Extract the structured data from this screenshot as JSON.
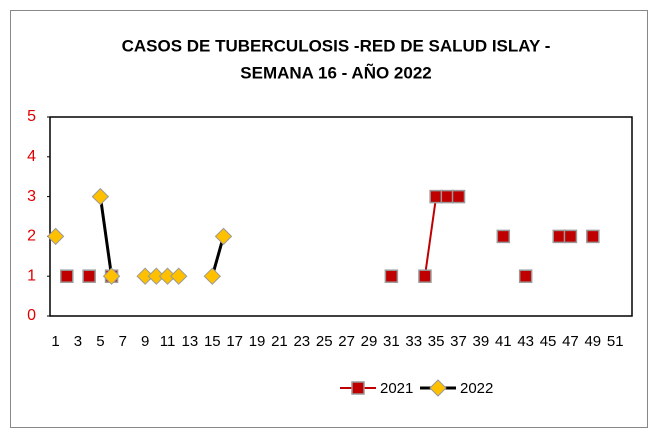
{
  "chart_data": {
    "type": "line",
    "title": [
      "CASOS DE TUBERCULOSIS -RED DE SALUD ISLAY -",
      "SEMANA 16 -  AÑO 2022"
    ],
    "categories": [
      1,
      null,
      3,
      null,
      5,
      null,
      7,
      null,
      9,
      null,
      11,
      null,
      13,
      null,
      15,
      null,
      17,
      null,
      19,
      null,
      21,
      null,
      23,
      null,
      25,
      null,
      27,
      null,
      29,
      null,
      31,
      null,
      33,
      null,
      35,
      null,
      37,
      null,
      39,
      null,
      41,
      null,
      43,
      null,
      45,
      null,
      47,
      null,
      49,
      null,
      51,
      null
    ],
    "series": [
      {
        "name": "2021",
        "color": "#c00000",
        "marker": "square",
        "marker_color": "#c00000",
        "values": [
          null,
          1,
          null,
          1,
          null,
          1,
          null,
          null,
          null,
          null,
          null,
          null,
          null,
          null,
          null,
          null,
          null,
          null,
          null,
          null,
          null,
          null,
          null,
          null,
          null,
          null,
          null,
          null,
          null,
          null,
          1,
          null,
          null,
          1,
          3,
          3,
          3,
          null,
          null,
          null,
          2,
          null,
          1,
          null,
          null,
          2,
          2,
          null,
          2,
          null,
          null,
          null
        ]
      },
      {
        "name": "2022",
        "color": "#000000",
        "marker": "diamond",
        "marker_color": "#ffc000",
        "values": [
          2,
          null,
          null,
          null,
          3,
          1,
          null,
          null,
          1,
          1,
          1,
          1,
          null,
          null,
          1,
          2,
          null,
          null,
          null,
          null,
          null,
          null,
          null,
          null,
          null,
          null,
          null,
          null,
          null,
          null,
          null,
          null,
          null,
          null,
          null,
          null,
          null,
          null,
          null,
          null,
          null,
          null,
          null,
          null,
          null,
          null,
          null,
          null,
          null,
          null,
          null,
          null
        ]
      }
    ],
    "ylim": [
      0,
      5
    ],
    "yticks": [
      0,
      1,
      2,
      3,
      4,
      5
    ],
    "grid": false,
    "legend": "bottom"
  }
}
